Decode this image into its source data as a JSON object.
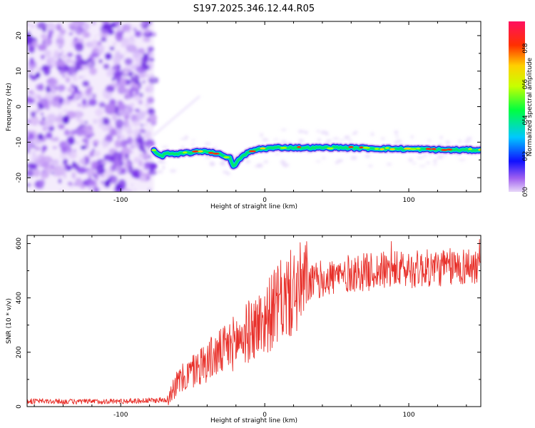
{
  "title": "S197.2025.346.12.44.R05",
  "colors": {
    "snr_line": "#e8302a",
    "background": "#ffffff",
    "axes": "#000000"
  },
  "chart_data": [
    {
      "type": "heatmap",
      "name": "spectrogram",
      "xlabel": "Height of straight line (km)",
      "ylabel": "Frequency (Hz)",
      "xlim": [
        -165,
        150
      ],
      "ylim": [
        -24,
        24
      ],
      "xticks": [
        -100,
        0,
        100
      ],
      "xtick_labels": [
        "-100",
        "0",
        "100"
      ],
      "yticks": [
        -20,
        -10,
        0,
        10,
        20
      ],
      "ytick_labels": [
        "-20",
        "-10",
        "0",
        "10",
        "20"
      ],
      "noise_region_x": [
        -165,
        -77
      ],
      "signal_start_x": -77,
      "signal_track_hz": [
        [
          -77,
          -12.5
        ],
        [
          -72,
          -14
        ],
        [
          -68,
          -13
        ],
        [
          -62,
          -13.5
        ],
        [
          -55,
          -13
        ],
        [
          -48,
          -12.8
        ],
        [
          -42,
          -12.5
        ],
        [
          -35,
          -13
        ],
        [
          -28,
          -13.8
        ],
        [
          -24,
          -14.5
        ],
        [
          -22,
          -17
        ],
        [
          -20,
          -16
        ],
        [
          -17,
          -14.5
        ],
        [
          -12,
          -13
        ],
        [
          -5,
          -12
        ],
        [
          0,
          -11.8
        ],
        [
          10,
          -11.5
        ],
        [
          30,
          -11.6
        ],
        [
          50,
          -11.5
        ],
        [
          80,
          -11.8
        ],
        [
          110,
          -12
        ],
        [
          130,
          -12.2
        ],
        [
          150,
          -12.2
        ]
      ],
      "colorbar": {
        "label": "Normalized spectral amplitude",
        "range": [
          0,
          0.95
        ],
        "ticks": [
          0.0,
          0.2,
          0.4,
          0.6,
          0.8
        ],
        "tick_labels": [
          "0.0",
          "0.2",
          "0.4",
          "0.6",
          "0.8"
        ]
      }
    },
    {
      "type": "line",
      "name": "snr",
      "xlabel": "Height of straight line (km)",
      "ylabel": "SNR (10 * v/v)",
      "xlim": [
        -165,
        150
      ],
      "ylim": [
        0,
        630
      ],
      "xticks": [
        -100,
        0,
        100
      ],
      "xtick_labels": [
        "-100",
        "0",
        "100"
      ],
      "yticks": [
        0,
        200,
        400,
        600
      ],
      "ytick_labels": [
        "0",
        "200",
        "400",
        "600"
      ],
      "trend_points": [
        [
          -165,
          20
        ],
        [
          -130,
          18
        ],
        [
          -100,
          20
        ],
        [
          -80,
          22
        ],
        [
          -68,
          25
        ],
        [
          -65,
          60
        ],
        [
          -60,
          90
        ],
        [
          -50,
          130
        ],
        [
          -40,
          170
        ],
        [
          -30,
          200
        ],
        [
          -20,
          240
        ],
        [
          -10,
          280
        ],
        [
          0,
          320
        ],
        [
          10,
          380
        ],
        [
          20,
          420
        ],
        [
          30,
          450
        ],
        [
          40,
          470
        ],
        [
          60,
          490
        ],
        [
          80,
          500
        ],
        [
          100,
          505
        ],
        [
          120,
          510
        ],
        [
          150,
          520
        ]
      ],
      "series_name": "SNR"
    }
  ]
}
